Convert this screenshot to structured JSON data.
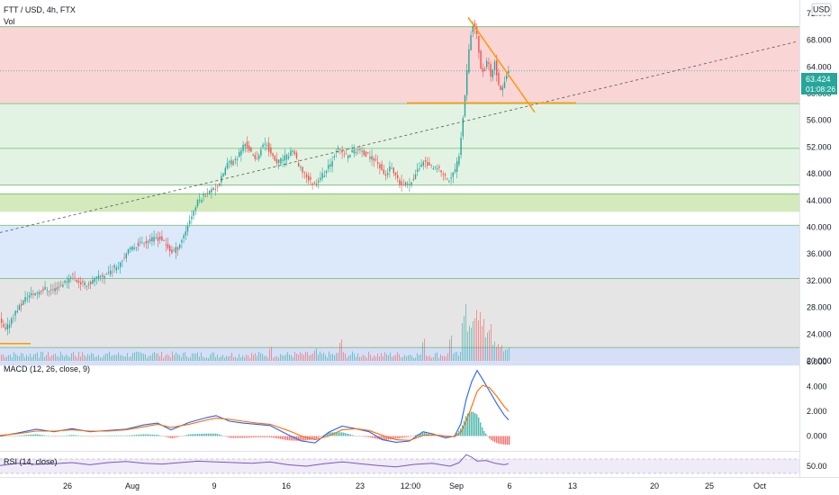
{
  "header": {
    "symbol_title": "FTT / USD, 4h, FTX",
    "volume_label": "Vol",
    "currency_badge": "USD"
  },
  "price_panel": {
    "last_price": "63.424",
    "countdown": "01:08:26",
    "price_label_color": "#26a69a"
  },
  "macd_panel": {
    "title": "MACD (12, 26, close, 9)"
  },
  "rsi_panel": {
    "title": "RSI (14, close)"
  },
  "colors": {
    "up": "#26a69a",
    "down": "#ef5350",
    "macd_line": "#2962ff",
    "signal_line": "#ff6d00",
    "rsi_line": "#7e57c2",
    "trendline": "#ff9800",
    "zone_red": "#f8c7c7",
    "zone_green": "#d9efd9",
    "zone_lime": "#c5e1a5",
    "zone_blue": "#cfe2f8",
    "zone_gray": "#dcdcdc",
    "zone_blue2": "#c7d4f3"
  },
  "chart_data": [
    {
      "type": "candlestick",
      "title": "FTT / USD, 4h, FTX",
      "y_axis_ticks": [
        "72.000",
        "68.000",
        "64.000",
        "60.000",
        "56.000",
        "52.000",
        "48.000",
        "44.000",
        "40.000",
        "36.000",
        "32.000",
        "28.000",
        "24.000",
        "20.000"
      ],
      "x_axis_ticks": [
        "26",
        "Aug",
        "9",
        "16",
        "23",
        "12:00",
        "Sep",
        "6",
        "13",
        "20",
        "25",
        "Oct"
      ],
      "ylim": [
        20,
        74
      ],
      "zones": [
        {
          "from": 58.5,
          "to": 70.0,
          "color": "zone_red"
        },
        {
          "from": 46.3,
          "to": 58.5,
          "color": "zone_green"
        },
        {
          "from": 42.3,
          "to": 45.0,
          "color": "zone_lime"
        },
        {
          "from": 32.3,
          "to": 40.3,
          "color": "zone_blue"
        },
        {
          "from": 22.0,
          "to": 32.3,
          "color": "zone_gray"
        },
        {
          "from": 19.3,
          "to": 22.0,
          "color": "zone_blue2"
        }
      ],
      "horizontal_lines": [
        70.0,
        58.5,
        51.8,
        46.3,
        45.0,
        40.3,
        32.3,
        22.0
      ],
      "dotted_price_line": 63.4,
      "path": [
        [
          0,
          26.0
        ],
        [
          6,
          24.4
        ],
        [
          14,
          26.6
        ],
        [
          20,
          27.8
        ],
        [
          30,
          29.6
        ],
        [
          40,
          30.2
        ],
        [
          50,
          30.8
        ],
        [
          60,
          30.6
        ],
        [
          68,
          31.4
        ],
        [
          76,
          32.2
        ],
        [
          80,
          33.0
        ],
        [
          86,
          32.0
        ],
        [
          94,
          31.4
        ],
        [
          100,
          31.6
        ],
        [
          108,
          32.4
        ],
        [
          116,
          32.8
        ],
        [
          124,
          33.6
        ],
        [
          132,
          34.4
        ],
        [
          140,
          36.0
        ],
        [
          150,
          37.2
        ],
        [
          158,
          37.8
        ],
        [
          166,
          38.0
        ],
        [
          174,
          38.4
        ],
        [
          180,
          38.2
        ],
        [
          186,
          37.0
        ],
        [
          192,
          36.2
        ],
        [
          198,
          37.0
        ],
        [
          204,
          38.6
        ],
        [
          212,
          41.4
        ],
        [
          220,
          43.8
        ],
        [
          228,
          45.0
        ],
        [
          236,
          45.6
        ],
        [
          244,
          46.4
        ],
        [
          248,
          48.0
        ],
        [
          254,
          49.8
        ],
        [
          260,
          49.6
        ],
        [
          266,
          51.0
        ],
        [
          272,
          52.6
        ],
        [
          278,
          51.4
        ],
        [
          284,
          50.0
        ],
        [
          290,
          51.6
        ],
        [
          296,
          52.8
        ],
        [
          302,
          50.6
        ],
        [
          308,
          49.6
        ],
        [
          314,
          50.2
        ],
        [
          320,
          50.6
        ],
        [
          326,
          51.8
        ],
        [
          332,
          49.0
        ],
        [
          338,
          48.2
        ],
        [
          344,
          47.0
        ],
        [
          350,
          46.4
        ],
        [
          356,
          47.6
        ],
        [
          362,
          48.2
        ],
        [
          368,
          49.6
        ],
        [
          374,
          51.8
        ],
        [
          380,
          51.2
        ],
        [
          386,
          50.6
        ],
        [
          392,
          51.4
        ],
        [
          398,
          51.6
        ],
        [
          404,
          51.0
        ],
        [
          410,
          50.6
        ],
        [
          416,
          50.2
        ],
        [
          422,
          49.2
        ],
        [
          428,
          47.6
        ],
        [
          434,
          49.0
        ],
        [
          440,
          47.4
        ],
        [
          446,
          46.2
        ],
        [
          452,
          46.4
        ],
        [
          458,
          47.0
        ],
        [
          464,
          48.4
        ],
        [
          470,
          50.0
        ],
        [
          476,
          49.4
        ],
        [
          482,
          48.6
        ],
        [
          488,
          48.8
        ],
        [
          494,
          47.6
        ],
        [
          500,
          47.0
        ],
        [
          506,
          48.6
        ],
        [
          510,
          50.6
        ],
        [
          514,
          55.6
        ],
        [
          518,
          61.8
        ],
        [
          522,
          68.0
        ],
        [
          526,
          70.4
        ],
        [
          530,
          69.0
        ],
        [
          534,
          64.2
        ],
        [
          538,
          63.0
        ],
        [
          542,
          65.6
        ],
        [
          546,
          62.0
        ],
        [
          550,
          64.8
        ],
        [
          554,
          61.2
        ],
        [
          558,
          60.4
        ],
        [
          562,
          62.6
        ],
        [
          566,
          63.42
        ]
      ],
      "trendlines": [
        {
          "kind": "dashed",
          "from": [
            0,
            39.2
          ],
          "to": [
            886,
            67.8
          ]
        },
        {
          "kind": "solid",
          "from": [
            520,
            71.4
          ],
          "to": [
            594,
            57.2
          ]
        },
        {
          "kind": "solid",
          "from": [
            452,
            58.6
          ],
          "to": [
            640,
            58.6
          ]
        },
        {
          "kind": "solid",
          "from": [
            0,
            22.6
          ],
          "to": [
            34,
            22.6
          ]
        }
      ],
      "volume_spikes": [
        {
          "x": 40,
          "v": 0.15
        },
        {
          "x": 80,
          "v": 0.16
        },
        {
          "x": 170,
          "v": 0.16
        },
        {
          "x": 300,
          "v": 0.25
        },
        {
          "x": 350,
          "v": 0.22
        },
        {
          "x": 378,
          "v": 0.38
        },
        {
          "x": 470,
          "v": 0.39
        },
        {
          "x": 500,
          "v": 0.45
        },
        {
          "x": 514,
          "v": 0.8
        },
        {
          "x": 516,
          "v": 1.0
        },
        {
          "x": 520,
          "v": 0.62
        },
        {
          "x": 524,
          "v": 0.7
        },
        {
          "x": 528,
          "v": 0.9
        },
        {
          "x": 532,
          "v": 0.86
        },
        {
          "x": 536,
          "v": 0.74
        },
        {
          "x": 540,
          "v": 0.5
        },
        {
          "x": 544,
          "v": 0.65
        },
        {
          "x": 548,
          "v": 0.34
        },
        {
          "x": 552,
          "v": 0.3
        },
        {
          "x": 556,
          "v": 0.28
        },
        {
          "x": 560,
          "v": 0.2
        },
        {
          "x": 564,
          "v": 0.24
        }
      ]
    },
    {
      "type": "line",
      "title": "MACD (12, 26, close, 9)",
      "y_axis_ticks": [
        "6.000",
        "4.000",
        "2.000",
        "0.000"
      ],
      "ylim": [
        -1.2,
        6.0
      ],
      "macd": [
        [
          0,
          0.0
        ],
        [
          20,
          0.25
        ],
        [
          40,
          0.55
        ],
        [
          60,
          0.35
        ],
        [
          80,
          0.6
        ],
        [
          100,
          0.35
        ],
        [
          120,
          0.45
        ],
        [
          140,
          0.55
        ],
        [
          160,
          0.9
        ],
        [
          175,
          1.05
        ],
        [
          190,
          0.5
        ],
        [
          210,
          1.1
        ],
        [
          230,
          1.5
        ],
        [
          240,
          1.65
        ],
        [
          255,
          1.2
        ],
        [
          270,
          1.05
        ],
        [
          285,
          0.95
        ],
        [
          300,
          0.85
        ],
        [
          320,
          0.1
        ],
        [
          335,
          -0.4
        ],
        [
          350,
          -0.55
        ],
        [
          365,
          0.3
        ],
        [
          380,
          0.8
        ],
        [
          395,
          0.6
        ],
        [
          410,
          0.35
        ],
        [
          425,
          -0.3
        ],
        [
          440,
          -0.5
        ],
        [
          455,
          -0.4
        ],
        [
          470,
          0.35
        ],
        [
          482,
          0.15
        ],
        [
          495,
          -0.15
        ],
        [
          505,
          0.0
        ],
        [
          512,
          1.0
        ],
        [
          518,
          3.0
        ],
        [
          524,
          4.4
        ],
        [
          530,
          5.3
        ],
        [
          536,
          4.6
        ],
        [
          544,
          3.6
        ],
        [
          552,
          2.6
        ],
        [
          560,
          1.7
        ],
        [
          565,
          1.3
        ]
      ],
      "signal": [
        [
          0,
          0.05
        ],
        [
          20,
          0.2
        ],
        [
          40,
          0.4
        ],
        [
          60,
          0.4
        ],
        [
          80,
          0.5
        ],
        [
          100,
          0.4
        ],
        [
          120,
          0.4
        ],
        [
          140,
          0.5
        ],
        [
          160,
          0.75
        ],
        [
          175,
          0.95
        ],
        [
          190,
          0.7
        ],
        [
          210,
          0.95
        ],
        [
          230,
          1.3
        ],
        [
          240,
          1.45
        ],
        [
          255,
          1.35
        ],
        [
          270,
          1.2
        ],
        [
          285,
          1.05
        ],
        [
          300,
          0.95
        ],
        [
          320,
          0.45
        ],
        [
          335,
          0.0
        ],
        [
          350,
          -0.3
        ],
        [
          365,
          0.0
        ],
        [
          380,
          0.5
        ],
        [
          395,
          0.6
        ],
        [
          410,
          0.45
        ],
        [
          425,
          0.05
        ],
        [
          440,
          -0.3
        ],
        [
          455,
          -0.35
        ],
        [
          470,
          0.05
        ],
        [
          482,
          0.1
        ],
        [
          495,
          0.0
        ],
        [
          505,
          -0.05
        ],
        [
          512,
          0.3
        ],
        [
          518,
          1.2
        ],
        [
          524,
          2.4
        ],
        [
          530,
          3.6
        ],
        [
          536,
          4.1
        ],
        [
          544,
          3.9
        ],
        [
          552,
          3.2
        ],
        [
          560,
          2.4
        ],
        [
          565,
          2.0
        ]
      ]
    },
    {
      "type": "line",
      "title": "RSI (14, close)",
      "y_axis_ticks": [
        "50.00"
      ],
      "ylim": [
        20,
        90
      ],
      "band": [
        30,
        70
      ],
      "rsi": [
        [
          0,
          52
        ],
        [
          20,
          58
        ],
        [
          40,
          55
        ],
        [
          60,
          57
        ],
        [
          80,
          60
        ],
        [
          100,
          54
        ],
        [
          120,
          60
        ],
        [
          140,
          63
        ],
        [
          160,
          58
        ],
        [
          180,
          56
        ],
        [
          200,
          60
        ],
        [
          220,
          64
        ],
        [
          240,
          62
        ],
        [
          260,
          60
        ],
        [
          280,
          58
        ],
        [
          300,
          62
        ],
        [
          320,
          54
        ],
        [
          340,
          50
        ],
        [
          360,
          57
        ],
        [
          380,
          62
        ],
        [
          400,
          57
        ],
        [
          420,
          52
        ],
        [
          440,
          48
        ],
        [
          460,
          55
        ],
        [
          480,
          58
        ],
        [
          500,
          50
        ],
        [
          510,
          60
        ],
        [
          518,
          82
        ],
        [
          524,
          75
        ],
        [
          530,
          64
        ],
        [
          540,
          66
        ],
        [
          550,
          58
        ],
        [
          560,
          54
        ],
        [
          565,
          57
        ]
      ]
    }
  ]
}
